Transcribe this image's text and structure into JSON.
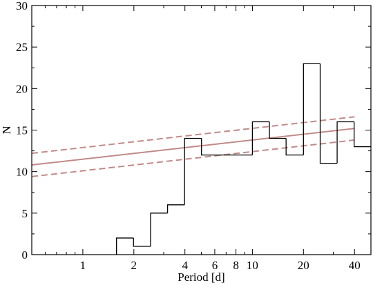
{
  "chart_data": {
    "type": "histogram",
    "xlabel": "Period [d]",
    "ylabel": "N",
    "xscale": "log",
    "xlim": [
      0.5,
      50
    ],
    "ylim": [
      0,
      30
    ],
    "x_ticks": [
      1,
      2,
      4,
      6,
      8,
      10,
      20,
      40
    ],
    "y_ticks": [
      0,
      5,
      10,
      15,
      20,
      25,
      30
    ],
    "grid": false,
    "histogram": {
      "bin_edges": [
        1.58,
        1.99,
        2.51,
        3.16,
        3.98,
        5.01,
        6.31,
        7.94,
        10.0,
        12.6,
        15.8,
        20.0,
        25.1,
        31.6,
        39.8,
        50.1
      ],
      "counts": [
        2,
        1,
        5,
        6,
        14,
        12,
        12,
        12,
        16,
        14,
        12,
        23,
        11,
        16,
        13
      ],
      "color": "#000000"
    },
    "fit": {
      "color": "#c08a88",
      "line": {
        "x": [
          0.5,
          40
        ],
        "y": [
          10.8,
          15.2
        ]
      },
      "upper": {
        "x": [
          0.5,
          40
        ],
        "y": [
          12.2,
          16.6
        ]
      },
      "lower": {
        "x": [
          0.5,
          40
        ],
        "y": [
          9.4,
          13.8
        ]
      }
    }
  }
}
